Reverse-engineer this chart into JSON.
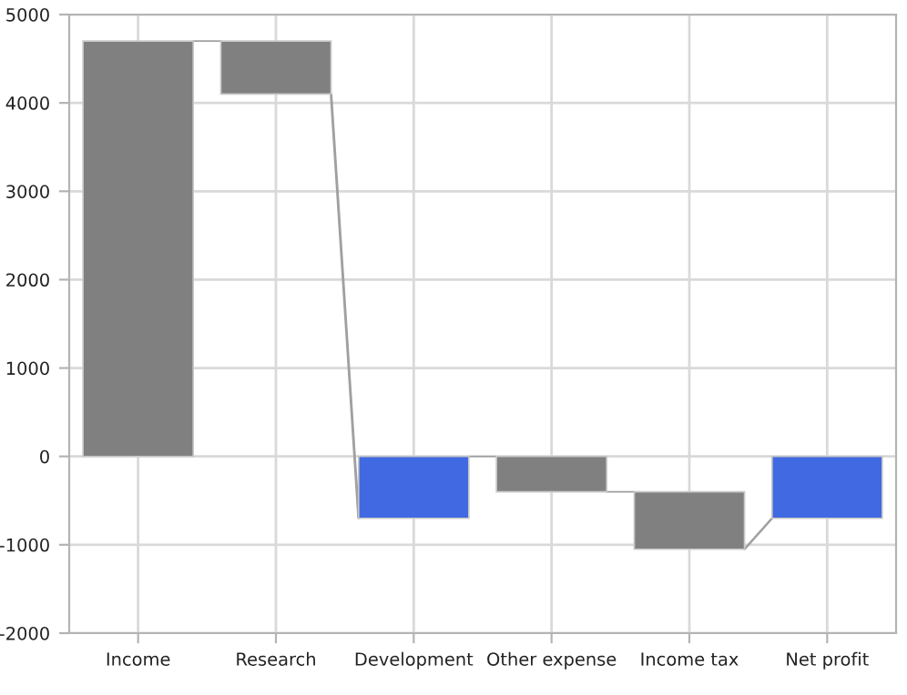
{
  "chart_data": {
    "type": "bar",
    "categories": [
      "Income",
      "Research",
      "Development",
      "Other expense",
      "Income tax",
      "Net profit"
    ],
    "values": [
      4700,
      -600,
      700,
      -400,
      -650,
      700
    ],
    "base": [
      0,
      4700,
      -700,
      0,
      -400,
      -700
    ],
    "colors": [
      "#808080",
      "#808080",
      "#4169e1",
      "#808080",
      "#808080",
      "#4169e1"
    ],
    "ylim": [
      -2000,
      5000
    ],
    "yticks": [
      -2000,
      -1000,
      0,
      1000,
      2000,
      3000,
      4000,
      5000
    ],
    "grid": true
  }
}
